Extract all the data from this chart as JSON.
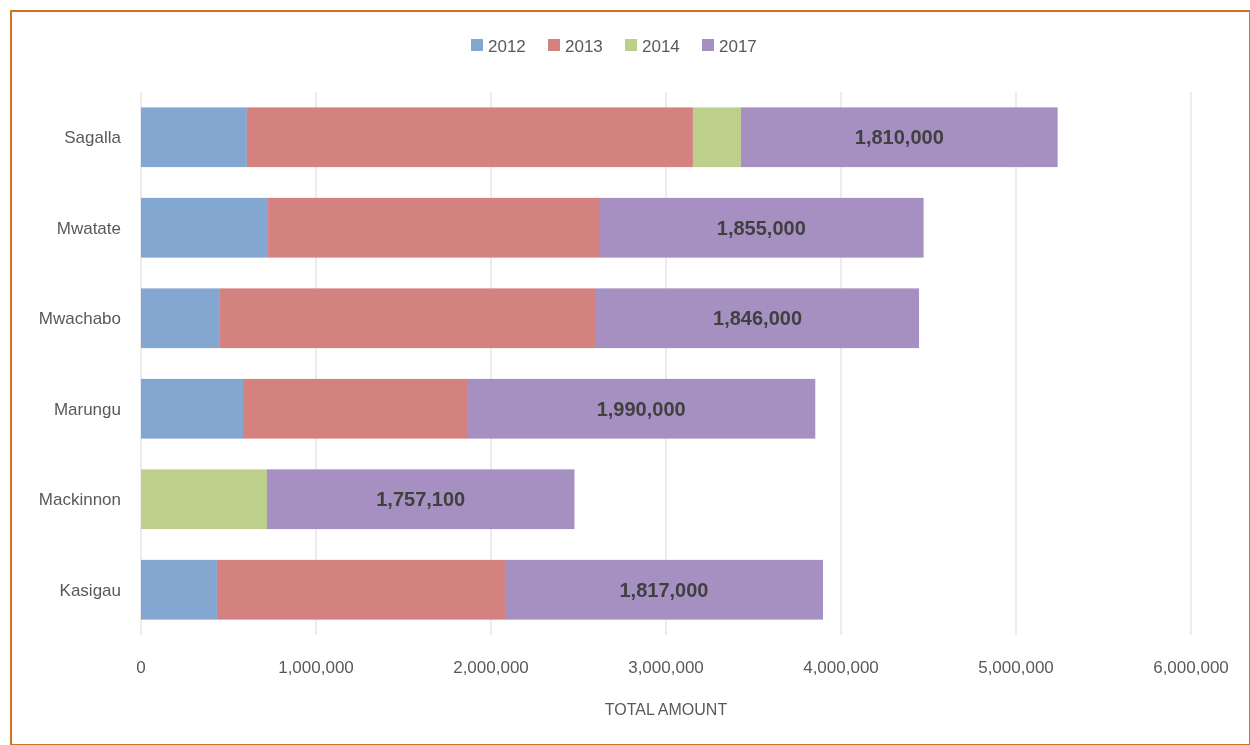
{
  "chart_data": {
    "type": "bar",
    "orientation": "horizontal",
    "stacked": true,
    "xlabel": "TOTAL AMOUNT",
    "categories": [
      "Sagalla",
      "Mwatate",
      "Mwachabo",
      "Marungu",
      "Mackinnon",
      "Kasigau"
    ],
    "series": [
      {
        "name": "2012",
        "color": "#84a7d1",
        "values": [
          605000,
          726000,
          451000,
          583000,
          null,
          434000
        ]
      },
      {
        "name": "2013",
        "color": "#d48280",
        "values": [
          2549000,
          1891000,
          2149000,
          1280000,
          null,
          1646000
        ]
      },
      {
        "name": "2014",
        "color": "#bcd08c",
        "values": [
          274000,
          null,
          null,
          null,
          720000,
          null
        ]
      },
      {
        "name": "2017",
        "color": "#a590c1",
        "values": [
          1810000,
          1855000,
          1846000,
          1990000,
          1757100,
          1817000
        ],
        "value_labels": [
          "1,810,000",
          "1,855,000",
          "1,846,000",
          "1,990,000",
          "1,757,100",
          "1,817,000"
        ]
      }
    ],
    "xlim": [
      0,
      6000000
    ],
    "xticks": [
      {
        "value": 0,
        "label": "0"
      },
      {
        "value": 1000000,
        "label": "1,000,000"
      },
      {
        "value": 2000000,
        "label": "2,000,000"
      },
      {
        "value": 3000000,
        "label": "3,000,000"
      },
      {
        "value": 4000000,
        "label": "4,000,000"
      },
      {
        "value": 5000000,
        "label": "5,000,000"
      },
      {
        "value": 6000000,
        "label": "6,000,000"
      }
    ],
    "grid": "x",
    "legend": "top"
  }
}
